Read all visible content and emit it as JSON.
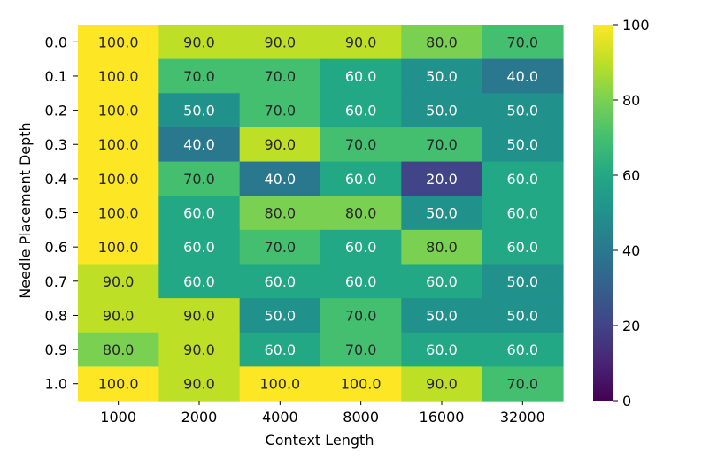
{
  "chart_data": {
    "type": "heatmap",
    "xlabel": "Context Length",
    "ylabel": "Needle Placement Depth",
    "x_categories": [
      "1000",
      "2000",
      "4000",
      "8000",
      "16000",
      "32000"
    ],
    "y_categories": [
      "0.0",
      "0.1",
      "0.2",
      "0.3",
      "0.4",
      "0.5",
      "0.6",
      "0.7",
      "0.8",
      "0.9",
      "1.0"
    ],
    "values": [
      [
        100,
        90,
        90,
        90,
        80,
        70
      ],
      [
        100,
        70,
        70,
        60,
        50,
        40
      ],
      [
        100,
        50,
        70,
        60,
        50,
        50
      ],
      [
        100,
        40,
        90,
        70,
        70,
        50
      ],
      [
        100,
        70,
        40,
        60,
        20,
        60
      ],
      [
        100,
        60,
        80,
        80,
        50,
        60
      ],
      [
        100,
        60,
        70,
        60,
        80,
        60
      ],
      [
        90,
        60,
        60,
        60,
        60,
        50
      ],
      [
        90,
        90,
        50,
        70,
        50,
        50
      ],
      [
        80,
        90,
        60,
        70,
        60,
        60
      ],
      [
        100,
        90,
        100,
        100,
        90,
        70
      ]
    ],
    "value_labels": [
      [
        "100.0",
        "90.0",
        "90.0",
        "90.0",
        "80.0",
        "70.0"
      ],
      [
        "100.0",
        "70.0",
        "70.0",
        "60.0",
        "50.0",
        "40.0"
      ],
      [
        "100.0",
        "50.0",
        "70.0",
        "60.0",
        "50.0",
        "50.0"
      ],
      [
        "100.0",
        "40.0",
        "90.0",
        "70.0",
        "70.0",
        "50.0"
      ],
      [
        "100.0",
        "70.0",
        "40.0",
        "60.0",
        "20.0",
        "60.0"
      ],
      [
        "100.0",
        "60.0",
        "80.0",
        "80.0",
        "50.0",
        "60.0"
      ],
      [
        "100.0",
        "60.0",
        "70.0",
        "60.0",
        "80.0",
        "60.0"
      ],
      [
        "90.0",
        "60.0",
        "60.0",
        "60.0",
        "60.0",
        "50.0"
      ],
      [
        "90.0",
        "90.0",
        "50.0",
        "70.0",
        "50.0",
        "50.0"
      ],
      [
        "80.0",
        "90.0",
        "60.0",
        "70.0",
        "60.0",
        "60.0"
      ],
      [
        "100.0",
        "90.0",
        "100.0",
        "100.0",
        "90.0",
        "70.0"
      ]
    ],
    "colorbar": {
      "colormap": "viridis",
      "range": [
        0,
        100
      ],
      "ticks": [
        "0",
        "20",
        "40",
        "60",
        "80",
        "100"
      ]
    }
  }
}
